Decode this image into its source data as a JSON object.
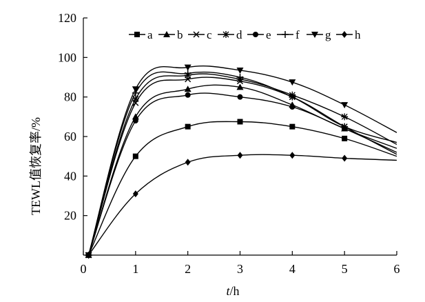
{
  "chart_data": {
    "type": "line",
    "title": "",
    "xlabel_italic": "t",
    "xlabel_rest": "/h",
    "ylabel": "TEWL值恢复率/%",
    "xlim": [
      0,
      6
    ],
    "ylim": [
      0,
      120
    ],
    "xticks": [
      0,
      1,
      2,
      3,
      4,
      5,
      6
    ],
    "yticks": [
      20,
      40,
      60,
      80,
      100,
      120
    ],
    "grid": false,
    "legend_position": "top-center",
    "line_color": "#000000",
    "x": [
      0.1,
      1,
      2,
      3,
      4,
      5,
      6
    ],
    "series": [
      {
        "name": "a",
        "marker": "square",
        "values": [
          0,
          50,
          65,
          67.5,
          65,
          59,
          50
        ]
      },
      {
        "name": "b",
        "marker": "triangle",
        "values": [
          0,
          70,
          84,
          85,
          76,
          64,
          54
        ]
      },
      {
        "name": "c",
        "marker": "x",
        "values": [
          0,
          77,
          89,
          88,
          80,
          65,
          51
        ]
      },
      {
        "name": "d",
        "marker": "star",
        "values": [
          0,
          79,
          91,
          89,
          81,
          70,
          56
        ]
      },
      {
        "name": "e",
        "marker": "circle",
        "values": [
          0,
          68,
          81,
          80,
          75,
          64,
          52
        ]
      },
      {
        "name": "f",
        "marker": "plus",
        "values": [
          0,
          82,
          92,
          90,
          80,
          65,
          57
        ]
      },
      {
        "name": "g",
        "marker": "triangle-down",
        "values": [
          0,
          84,
          95,
          93.5,
          87.5,
          76,
          62
        ]
      },
      {
        "name": "h",
        "marker": "diamond",
        "values": [
          0,
          31,
          47,
          50.5,
          50.5,
          49,
          48
        ]
      }
    ]
  }
}
